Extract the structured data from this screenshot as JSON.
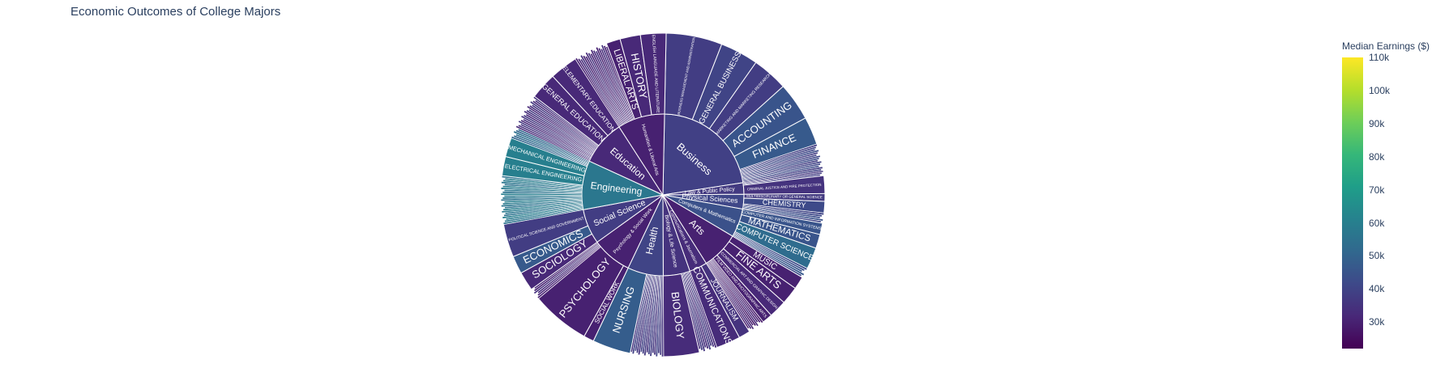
{
  "chart_data": {
    "type": "sunburst",
    "title": "Economic Outcomes of College Majors",
    "colorbar": {
      "title": "Median Earnings ($)",
      "range": [
        22000,
        110000
      ],
      "colorscale": "viridis",
      "ticks": [
        "30k",
        "40k",
        "50k",
        "60k",
        "70k",
        "80k",
        "90k",
        "100k",
        "110k"
      ],
      "tick_values": [
        30000,
        40000,
        50000,
        60000,
        70000,
        80000,
        90000,
        100000,
        110000
      ]
    },
    "inner": [
      {
        "label": "Business",
        "value": 17.5,
        "earn": 39000
      },
      {
        "label": "Law & Public Policy",
        "value": 1.8,
        "earn": 37000
      },
      {
        "label": "Physical Sciences",
        "value": 2.3,
        "earn": 41000
      },
      {
        "label": "Computers & Mathematics",
        "value": 4.5,
        "earn": 44000
      },
      {
        "label": "Arts",
        "value": 5.9,
        "earn": 30000
      },
      {
        "label": "Communications & Journalism",
        "value": 2.8,
        "earn": 33000
      },
      {
        "label": "Biology & Life Science",
        "value": 4.2,
        "earn": 35000
      },
      {
        "label": "Health",
        "value": 5.6,
        "earn": 40000
      },
      {
        "label": "Psychology & Social Work",
        "value": 6.3,
        "earn": 30000
      },
      {
        "label": "Social Science",
        "value": 5.5,
        "earn": 38000
      },
      {
        "label": "Engineering",
        "value": 7.7,
        "earn": 57000
      },
      {
        "label": "Education",
        "value": 7.1,
        "earn": 32000
      },
      {
        "label": "Humanities & Liberal Arts",
        "value": 7.4,
        "earn": 30000
      }
    ],
    "outer": [
      {
        "label": "BUSINESS MANAGEMENT AND ADMINISTRATION",
        "parent": "Business",
        "value": 4.4,
        "earn": 38000
      },
      {
        "label": "GENERAL BUSINESS",
        "parent": "Business",
        "value": 3.0,
        "earn": 40000
      },
      {
        "label": "MARKETING AND MARKETING RESEARCH",
        "parent": "Business",
        "value": 2.8,
        "earn": 38000
      },
      {
        "label": "ACCOUNTING",
        "parent": "Business",
        "value": 3.0,
        "earn": 45000
      },
      {
        "label": "FINANCE",
        "parent": "Business",
        "value": 2.2,
        "earn": 47000
      },
      {
        "label": "",
        "parent": "Business",
        "value": 2.1,
        "earn": 38000
      },
      {
        "label": "",
        "parent": "Law & Public Policy",
        "value": 0.4,
        "earn": 36000
      },
      {
        "label": "CRIMINAL JUSTICE AND FIRE PROTECTION",
        "parent": "Law & Public Policy",
        "value": 1.4,
        "earn": 35000
      },
      {
        "label": "MULTIDISCIPLINARY OR GENERAL SCIENCE",
        "parent": "Physical Sciences",
        "value": 0.6,
        "earn": 37000
      },
      {
        "label": "CHEMISTRY",
        "parent": "Physical Sciences",
        "value": 0.9,
        "earn": 42000
      },
      {
        "label": "",
        "parent": "Physical Sciences",
        "value": 0.8,
        "earn": 40000
      },
      {
        "label": "COMPUTER AND INFORMATION SYSTEMS",
        "parent": "Computers & Mathematics",
        "value": 0.9,
        "earn": 45000
      },
      {
        "label": "MATHEMATICS",
        "parent": "Computers & Mathematics",
        "value": 1.1,
        "earn": 45000
      },
      {
        "label": "COMPUTER SCIENCE",
        "parent": "Computers & Mathematics",
        "value": 1.7,
        "earn": 53000
      },
      {
        "label": "",
        "parent": "Computers & Mathematics",
        "value": 0.8,
        "earn": 42000
      },
      {
        "label": "MUSIC",
        "parent": "Arts",
        "value": 1.0,
        "earn": 30000
      },
      {
        "label": "FINE ARTS",
        "parent": "Arts",
        "value": 1.4,
        "earn": 30000
      },
      {
        "label": "COMMERCIAL ART AND GRAPHIC DESIGN",
        "parent": "Arts",
        "value": 1.4,
        "earn": 32000
      },
      {
        "label": "FILM VIDEO AND PHOTOGRAPHIC ARTS",
        "parent": "Arts",
        "value": 0.8,
        "earn": 30000
      },
      {
        "label": "",
        "parent": "Arts",
        "value": 1.3,
        "earn": 28000
      },
      {
        "label": "JOURNALISM",
        "parent": "Communications & Journalism",
        "value": 0.9,
        "earn": 35000
      },
      {
        "label": "COMMUNICATIONS",
        "parent": "Communications & Journalism",
        "value": 1.9,
        "earn": 33000
      },
      {
        "label": "",
        "parent": "Biology & Life Science",
        "value": 1.4,
        "earn": 33000
      },
      {
        "label": "BIOLOGY",
        "parent": "Biology & Life Science",
        "value": 2.8,
        "earn": 33000
      },
      {
        "label": "",
        "parent": "Health",
        "value": 2.6,
        "earn": 35000
      },
      {
        "label": "NURSING",
        "parent": "Health",
        "value": 3.0,
        "earn": 48000
      },
      {
        "label": "SOCIAL WORK",
        "parent": "Psychology & Social Work",
        "value": 0.8,
        "earn": 30000
      },
      {
        "label": "PSYCHOLOGY",
        "parent": "Psychology & Social Work",
        "value": 4.6,
        "earn": 30000
      },
      {
        "label": "",
        "parent": "Psychology & Social Work",
        "value": 0.9,
        "earn": 30000
      },
      {
        "label": "SOCIOLOGY",
        "parent": "Social Science",
        "value": 1.5,
        "earn": 32000
      },
      {
        "label": "ECONOMICS",
        "parent": "Social Science",
        "value": 1.4,
        "earn": 47000
      },
      {
        "label": "POLITICAL SCIENCE AND GOVERNMENT",
        "parent": "Social Science",
        "value": 2.6,
        "earn": 38000
      },
      {
        "label": "",
        "parent": "Engineering",
        "value": 3.8,
        "earn": 55000
      },
      {
        "label": "ELECTRICAL ENGINEERING",
        "parent": "Engineering",
        "value": 1.5,
        "earn": 60000
      },
      {
        "label": "MECHANICAL ENGINEERING",
        "parent": "Engineering",
        "value": 1.5,
        "earn": 60000
      },
      {
        "label": "",
        "parent": "Engineering",
        "value": 0.9,
        "earn": 50000
      },
      {
        "label": "",
        "parent": "Education",
        "value": 2.8,
        "earn": 32000
      },
      {
        "label": "GENERAL EDUCATION",
        "parent": "Education",
        "value": 2.1,
        "earn": 32000
      },
      {
        "label": "ELEMENTARY EDUCATION",
        "parent": "Education",
        "value": 2.2,
        "earn": 32000
      },
      {
        "label": "",
        "parent": "Humanities & Liberal Arts",
        "value": 2.7,
        "earn": 30000
      },
      {
        "label": "LIBERAL ARTS",
        "parent": "Humanities & Liberal Arts",
        "value": 1.1,
        "earn": 30000
      },
      {
        "label": "HISTORY",
        "parent": "Humanities & Liberal Arts",
        "value": 1.6,
        "earn": 32000
      },
      {
        "label": "ENGLISH LANGUAGE AND LITERATURE",
        "parent": "Humanities & Liberal Arts",
        "value": 2.0,
        "earn": 32000
      }
    ]
  }
}
